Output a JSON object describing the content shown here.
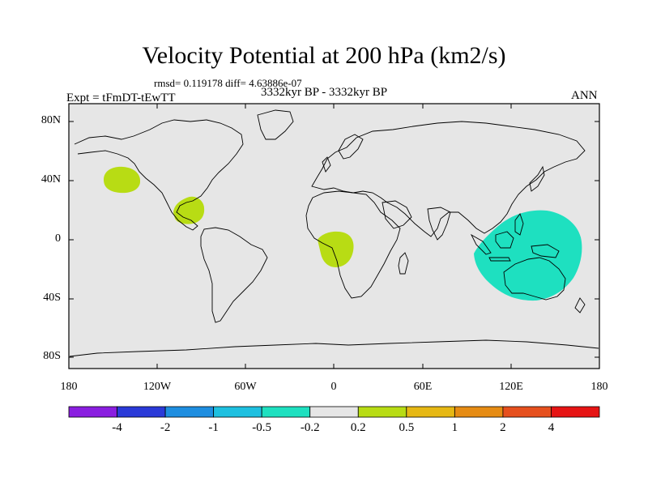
{
  "title": "Velocity Potential at 200 hPa (km2/s)",
  "rmsd_line": "rmsd= 0.119178  diff= 4.63886e-07",
  "experiment": "Expt = tFmDT-tEwTT",
  "period": "3332kyr BP - 3332kyr BP",
  "season": "ANN",
  "lat_labels": [
    "80N",
    "40N",
    "0",
    "40S",
    "80S"
  ],
  "lon_labels": [
    "180",
    "120W",
    "60W",
    "0",
    "60E",
    "120E",
    "180"
  ],
  "colorbar": {
    "colors": [
      "#8a1ee0",
      "#2a3ad8",
      "#1e8ee0",
      "#1ec0e0",
      "#1ee0c0",
      "#e6e6e6",
      "#b8dc14",
      "#e6b814",
      "#e68c14",
      "#e6501e",
      "#e61414"
    ],
    "labels": [
      "-4",
      "-2",
      "-1",
      "-0.5",
      "-0.2",
      "0.2",
      "0.5",
      "1",
      "2",
      "4"
    ]
  },
  "anomalies": [
    {
      "name": "north-pacific-positive",
      "level": "0.2 to 0.5",
      "color": "#b8dc14"
    },
    {
      "name": "central-america-positive",
      "level": "0.2 to 0.5",
      "color": "#b8dc14"
    },
    {
      "name": "tropical-atlantic-positive",
      "level": "0.2 to 0.5",
      "color": "#b8dc14"
    },
    {
      "name": "maritime-continent-negative",
      "level": "-0.5 to -0.2",
      "color": "#1ee0c0"
    }
  ],
  "map": {
    "background": "#e6e6e6",
    "coastline": "#000000"
  }
}
